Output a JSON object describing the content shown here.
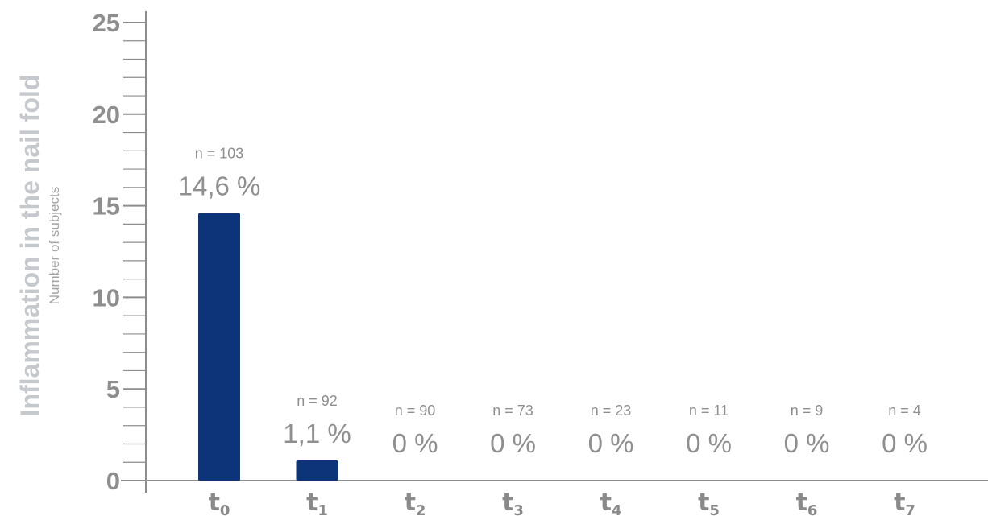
{
  "chart_data": {
    "type": "bar",
    "title": "Inflammation in the nail fold",
    "ylabel": "Number of subjects",
    "xlabel": "",
    "categories": [
      {
        "base": "t",
        "sub": "0"
      },
      {
        "base": "t",
        "sub": "1"
      },
      {
        "base": "t",
        "sub": "2"
      },
      {
        "base": "t",
        "sub": "3"
      },
      {
        "base": "t",
        "sub": "4"
      },
      {
        "base": "t",
        "sub": "5"
      },
      {
        "base": "t",
        "sub": "6"
      },
      {
        "base": "t",
        "sub": "7"
      }
    ],
    "values": [
      14.6,
      1.1,
      0,
      0,
      0,
      0,
      0,
      0
    ],
    "n_labels": [
      "n = 103",
      "n = 92",
      "n = 90",
      "n = 73",
      "n = 23",
      "n = 11",
      "n = 9",
      "n = 4"
    ],
    "value_labels": [
      "14,6 %",
      "1,1 %",
      "0 %",
      "0 %",
      "0 %",
      "0 %",
      "0 %",
      "0 %"
    ],
    "ylim": [
      0,
      25
    ],
    "yticks": [
      0,
      5,
      10,
      15,
      20,
      25
    ],
    "ytick_labels": [
      "0",
      "5",
      "10",
      "15",
      "20",
      "25"
    ],
    "minor_tick_step": 1,
    "grid": false,
    "colors": {
      "bar": "#0d3378",
      "axis": "#8c8c8c",
      "tick_label": "#8e8e8e",
      "title": "#c5c8cc",
      "ylabel": "#a3a3a3",
      "annotation": "#8f8f8f",
      "category": "#8a8a8a"
    }
  }
}
